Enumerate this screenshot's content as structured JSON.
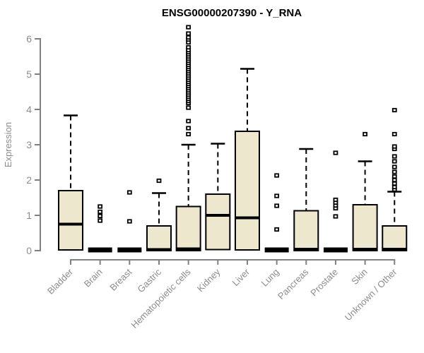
{
  "chart_data": {
    "type": "boxplot",
    "title": "ENSG00000207390 - Y_RNA",
    "ylabel": "Expression",
    "xlabel": "",
    "ylim": [
      0,
      6
    ],
    "yticks": [
      0,
      1,
      2,
      3,
      4,
      5,
      6
    ],
    "grid": false,
    "legend": false,
    "categories": [
      "Bladder",
      "Brain",
      "Breast",
      "Gastric",
      "Hematopoietic cells",
      "Kidney",
      "Liver",
      "Lung",
      "Pancreas",
      "Prostate",
      "Skin",
      "Unknown / Other"
    ],
    "boxes": [
      {
        "category": "Bladder",
        "whisker_low": 0,
        "q1": 0.02,
        "median": 0.75,
        "q3": 1.7,
        "whisker_high": 3.83,
        "outliers": []
      },
      {
        "category": "Brain",
        "whisker_low": 0,
        "q1": 0,
        "median": 0.02,
        "q3": 0.05,
        "whisker_high": 0.05,
        "outliers": [
          0.85,
          0.98,
          1.1,
          1.25
        ]
      },
      {
        "category": "Breast",
        "whisker_low": 0,
        "q1": 0,
        "median": 0.02,
        "q3": 0.05,
        "whisker_high": 0.05,
        "outliers": [
          0.83,
          1.65
        ]
      },
      {
        "category": "Gastric",
        "whisker_low": 0,
        "q1": 0,
        "median": 0.03,
        "q3": 0.7,
        "whisker_high": 1.63,
        "outliers": [
          1.98
        ]
      },
      {
        "category": "Hematopoietic cells",
        "whisker_low": 0,
        "q1": 0,
        "median": 0.05,
        "q3": 1.25,
        "whisker_high": 3.0,
        "outliers": [
          3.3,
          3.47,
          3.67,
          4.05,
          4.18,
          4.24,
          4.3,
          4.36,
          4.42,
          4.48,
          4.54,
          4.6,
          4.66,
          4.72,
          4.78,
          4.84,
          4.9,
          4.96,
          5.02,
          5.08,
          5.14,
          5.2,
          5.26,
          5.32,
          5.38,
          5.44,
          5.5,
          5.56,
          5.62,
          5.68,
          5.76,
          5.9,
          5.98,
          6.04,
          6.15,
          6.33
        ]
      },
      {
        "category": "Kidney",
        "whisker_low": 0,
        "q1": 0.03,
        "median": 1.0,
        "q3": 1.6,
        "whisker_high": 3.03,
        "outliers": []
      },
      {
        "category": "Liver",
        "whisker_low": 0,
        "q1": 0.02,
        "median": 0.93,
        "q3": 3.38,
        "whisker_high": 5.15,
        "outliers": []
      },
      {
        "category": "Lung",
        "whisker_low": 0,
        "q1": 0,
        "median": 0.02,
        "q3": 0.05,
        "whisker_high": 0.05,
        "outliers": [
          0.6,
          1.27,
          1.55,
          2.13
        ]
      },
      {
        "category": "Pancreas",
        "whisker_low": 0,
        "q1": 0,
        "median": 0.04,
        "q3": 1.13,
        "whisker_high": 2.88,
        "outliers": []
      },
      {
        "category": "Prostate",
        "whisker_low": 0,
        "q1": 0,
        "median": 0.02,
        "q3": 0.05,
        "whisker_high": 0.05,
        "outliers": [
          0.97,
          1.2,
          1.28,
          1.36,
          1.44,
          2.77
        ]
      },
      {
        "category": "Skin",
        "whisker_low": 0,
        "q1": 0,
        "median": 0.04,
        "q3": 1.3,
        "whisker_high": 2.53,
        "outliers": [
          3.3
        ]
      },
      {
        "category": "Unknown / Other",
        "whisker_low": 0,
        "q1": 0,
        "median": 0.04,
        "q3": 0.7,
        "whisker_high": 1.67,
        "outliers": [
          1.73,
          1.8,
          1.9,
          2.0,
          2.1,
          2.23,
          2.37,
          2.53,
          2.67,
          2.88,
          2.95,
          3.3,
          3.98
        ]
      }
    ],
    "colors": {
      "box_fill": "#EDE8CD",
      "box_border": "#000000",
      "median": "#000000",
      "whisker": "#000000",
      "outlier": "#000000",
      "axis": "#808080",
      "tick_label": "#8c8c8c",
      "title": "#000000",
      "background": "#ffffff"
    }
  }
}
